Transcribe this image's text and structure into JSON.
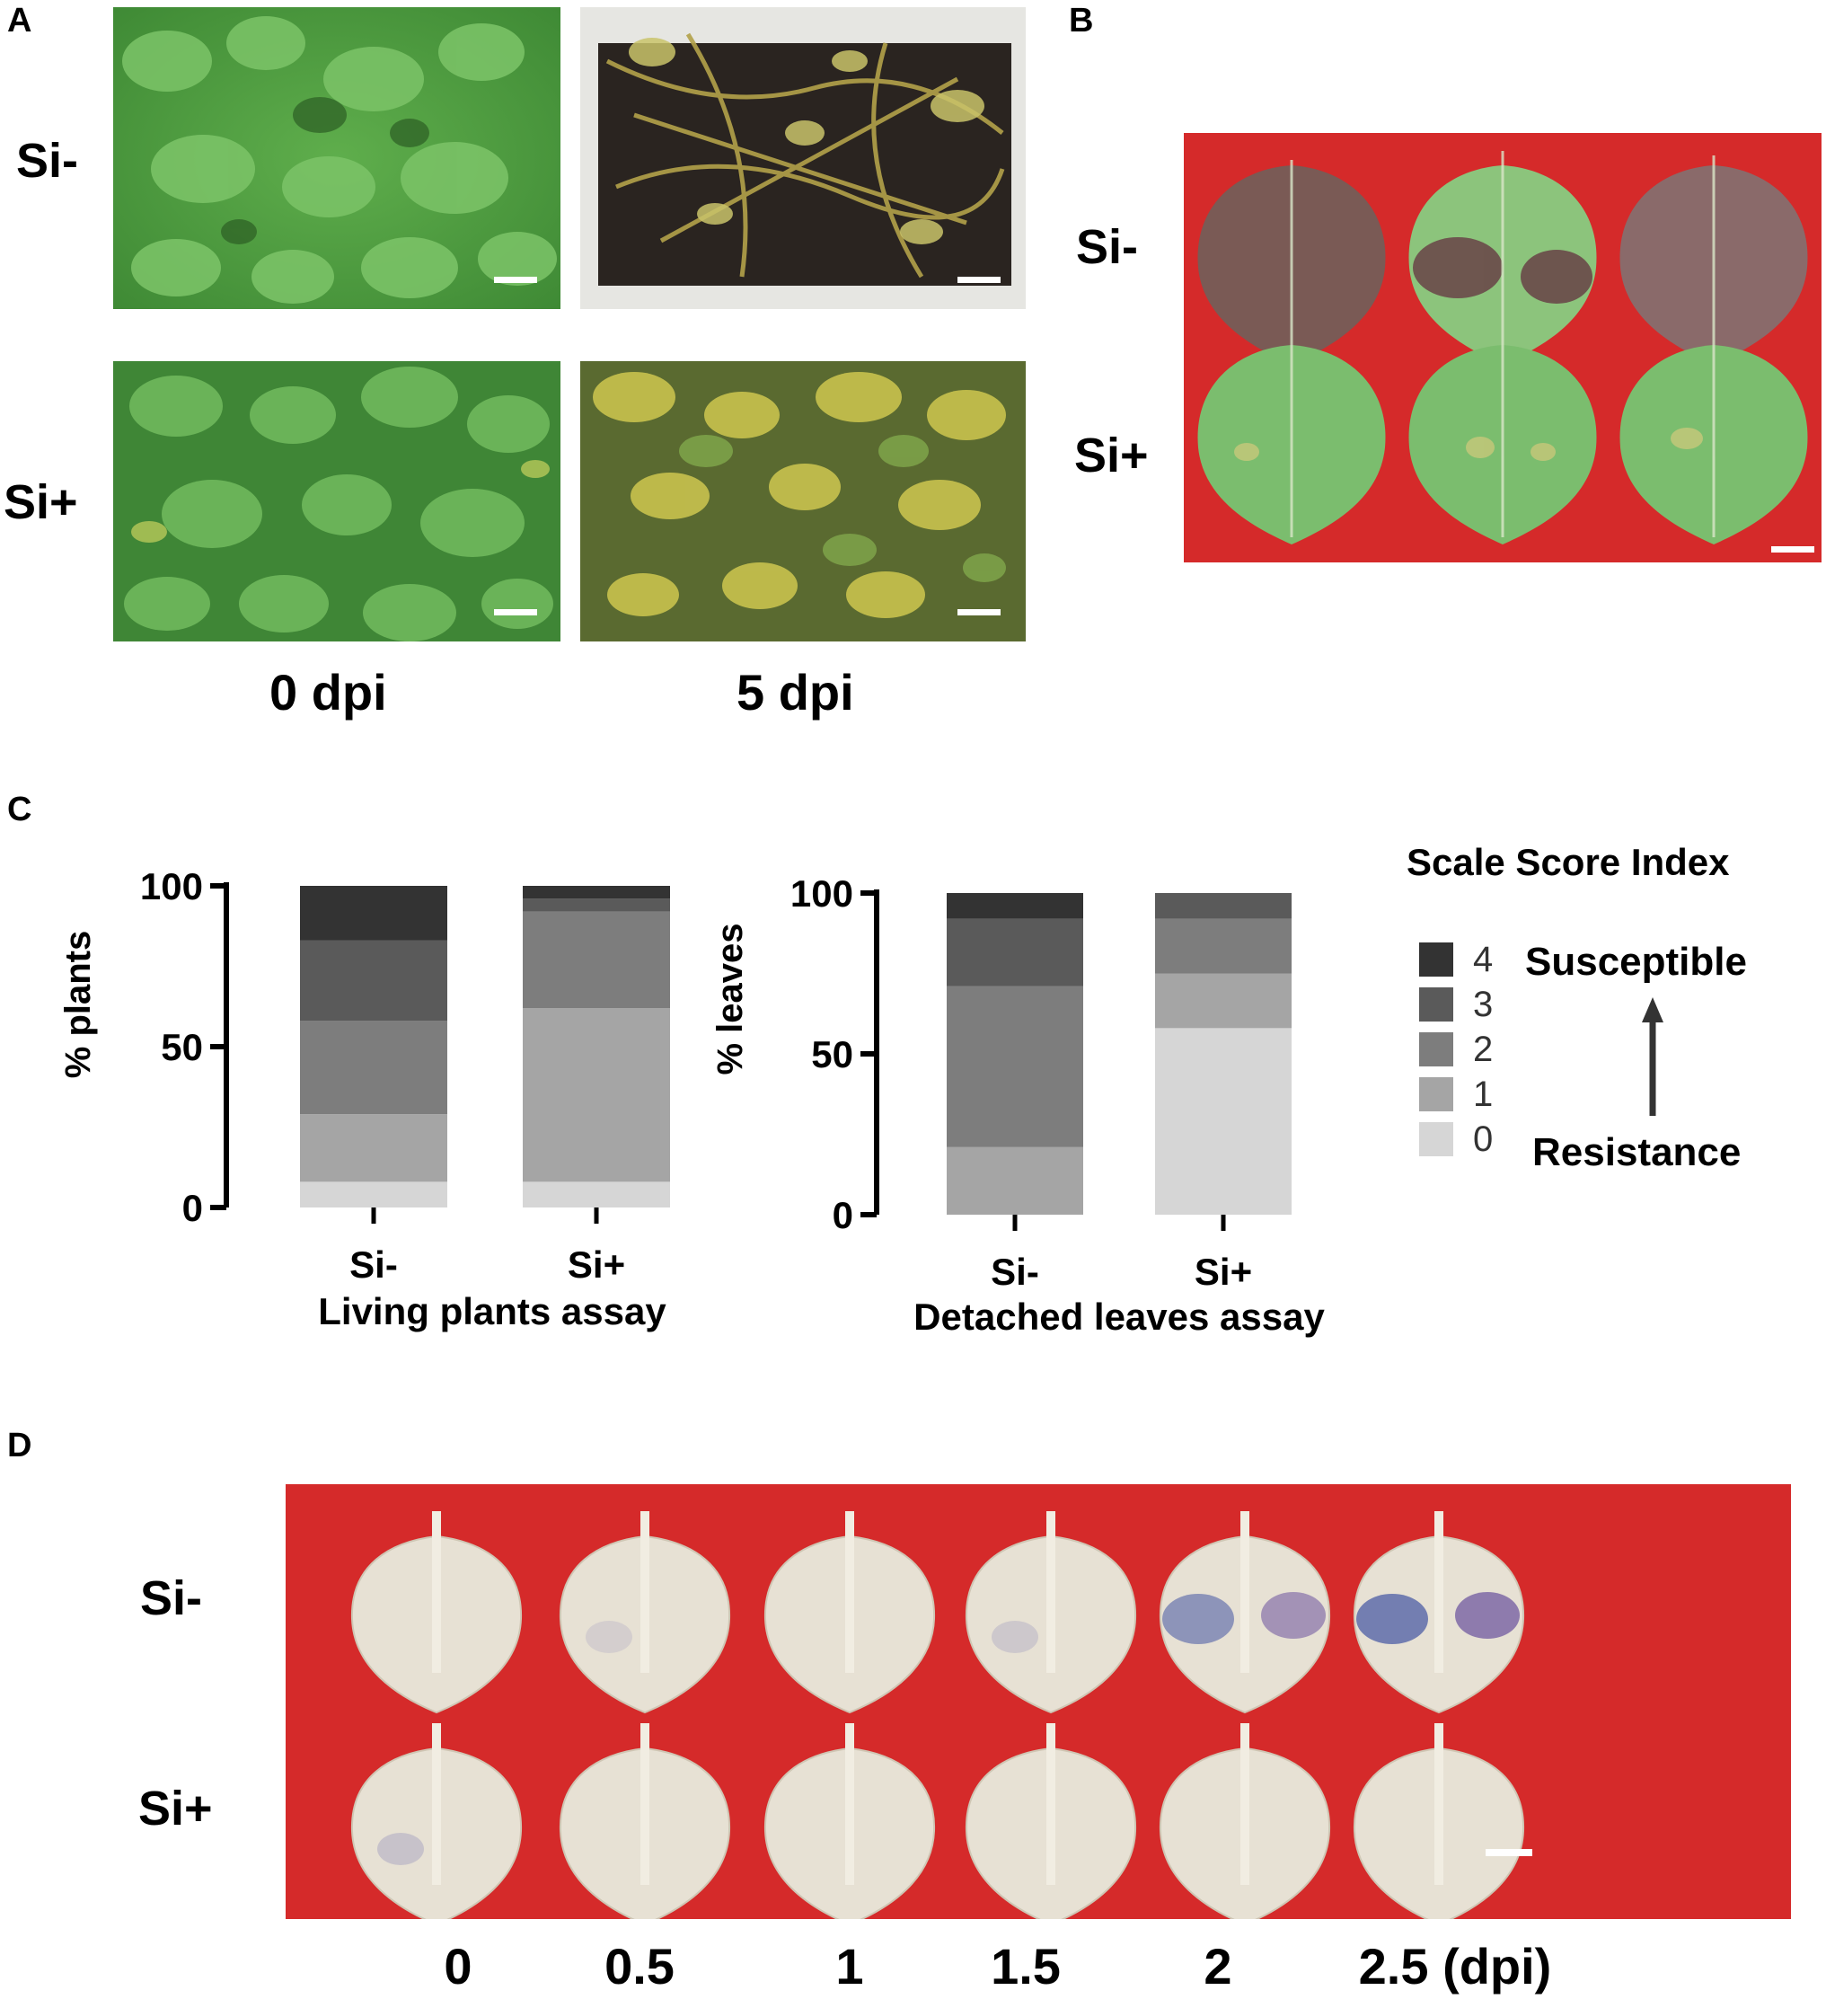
{
  "panels": {
    "A": {
      "letter": "A",
      "rows": [
        "Si-",
        "Si+"
      ],
      "timepoints": [
        "0 dpi",
        "5 dpi"
      ]
    },
    "B": {
      "letter": "B",
      "rows": [
        "Si-",
        "Si+"
      ]
    },
    "C": {
      "letter": "C"
    },
    "D": {
      "letter": "D",
      "rows": [
        "Si-",
        "Si+"
      ],
      "timepoints": [
        "0",
        "0.5",
        "1",
        "1.5",
        "2",
        "2.5 (dpi)"
      ]
    }
  },
  "legend": {
    "title": "Scale Score Index",
    "levels": [
      {
        "score": "4",
        "color": "#333333"
      },
      {
        "score": "3",
        "color": "#5a5a5a"
      },
      {
        "score": "2",
        "color": "#7d7d7d"
      },
      {
        "score": "1",
        "color": "#a5a5a5"
      },
      {
        "score": "0",
        "color": "#d6d6d6"
      }
    ],
    "top_label": "Susceptible",
    "bottom_label": "Resistance"
  },
  "colors": {
    "plate_red": "#d52a2a",
    "leaf_green": "#6fb86a",
    "plant_green": "#4e9a3e",
    "stain_blue": "#3b4ea0"
  },
  "chart_data": [
    {
      "type": "bar",
      "stacked": true,
      "title": "",
      "xlabel": "Living plants assay",
      "ylabel": "% plants",
      "ylim": [
        0,
        100
      ],
      "yticks": [
        "0",
        "50",
        "100"
      ],
      "categories": [
        "Si-",
        "Si+"
      ],
      "series": [
        {
          "name": "0",
          "values": [
            8,
            8
          ]
        },
        {
          "name": "1",
          "values": [
            21,
            54
          ]
        },
        {
          "name": "2",
          "values": [
            29,
            30
          ]
        },
        {
          "name": "3",
          "values": [
            25,
            4
          ]
        },
        {
          "name": "4",
          "values": [
            17,
            4
          ]
        }
      ]
    },
    {
      "type": "bar",
      "stacked": true,
      "title": "",
      "xlabel": "Detached leaves assay",
      "ylabel": "% leaves",
      "ylim": [
        0,
        100
      ],
      "yticks": [
        "0",
        "50",
        "100"
      ],
      "categories": [
        "Si-",
        "Si+"
      ],
      "series": [
        {
          "name": "0",
          "values": [
            0,
            58
          ]
        },
        {
          "name": "1",
          "values": [
            21,
            17
          ]
        },
        {
          "name": "2",
          "values": [
            50,
            17
          ]
        },
        {
          "name": "3",
          "values": [
            21,
            8
          ]
        },
        {
          "name": "4",
          "values": [
            8,
            0
          ]
        }
      ]
    }
  ]
}
